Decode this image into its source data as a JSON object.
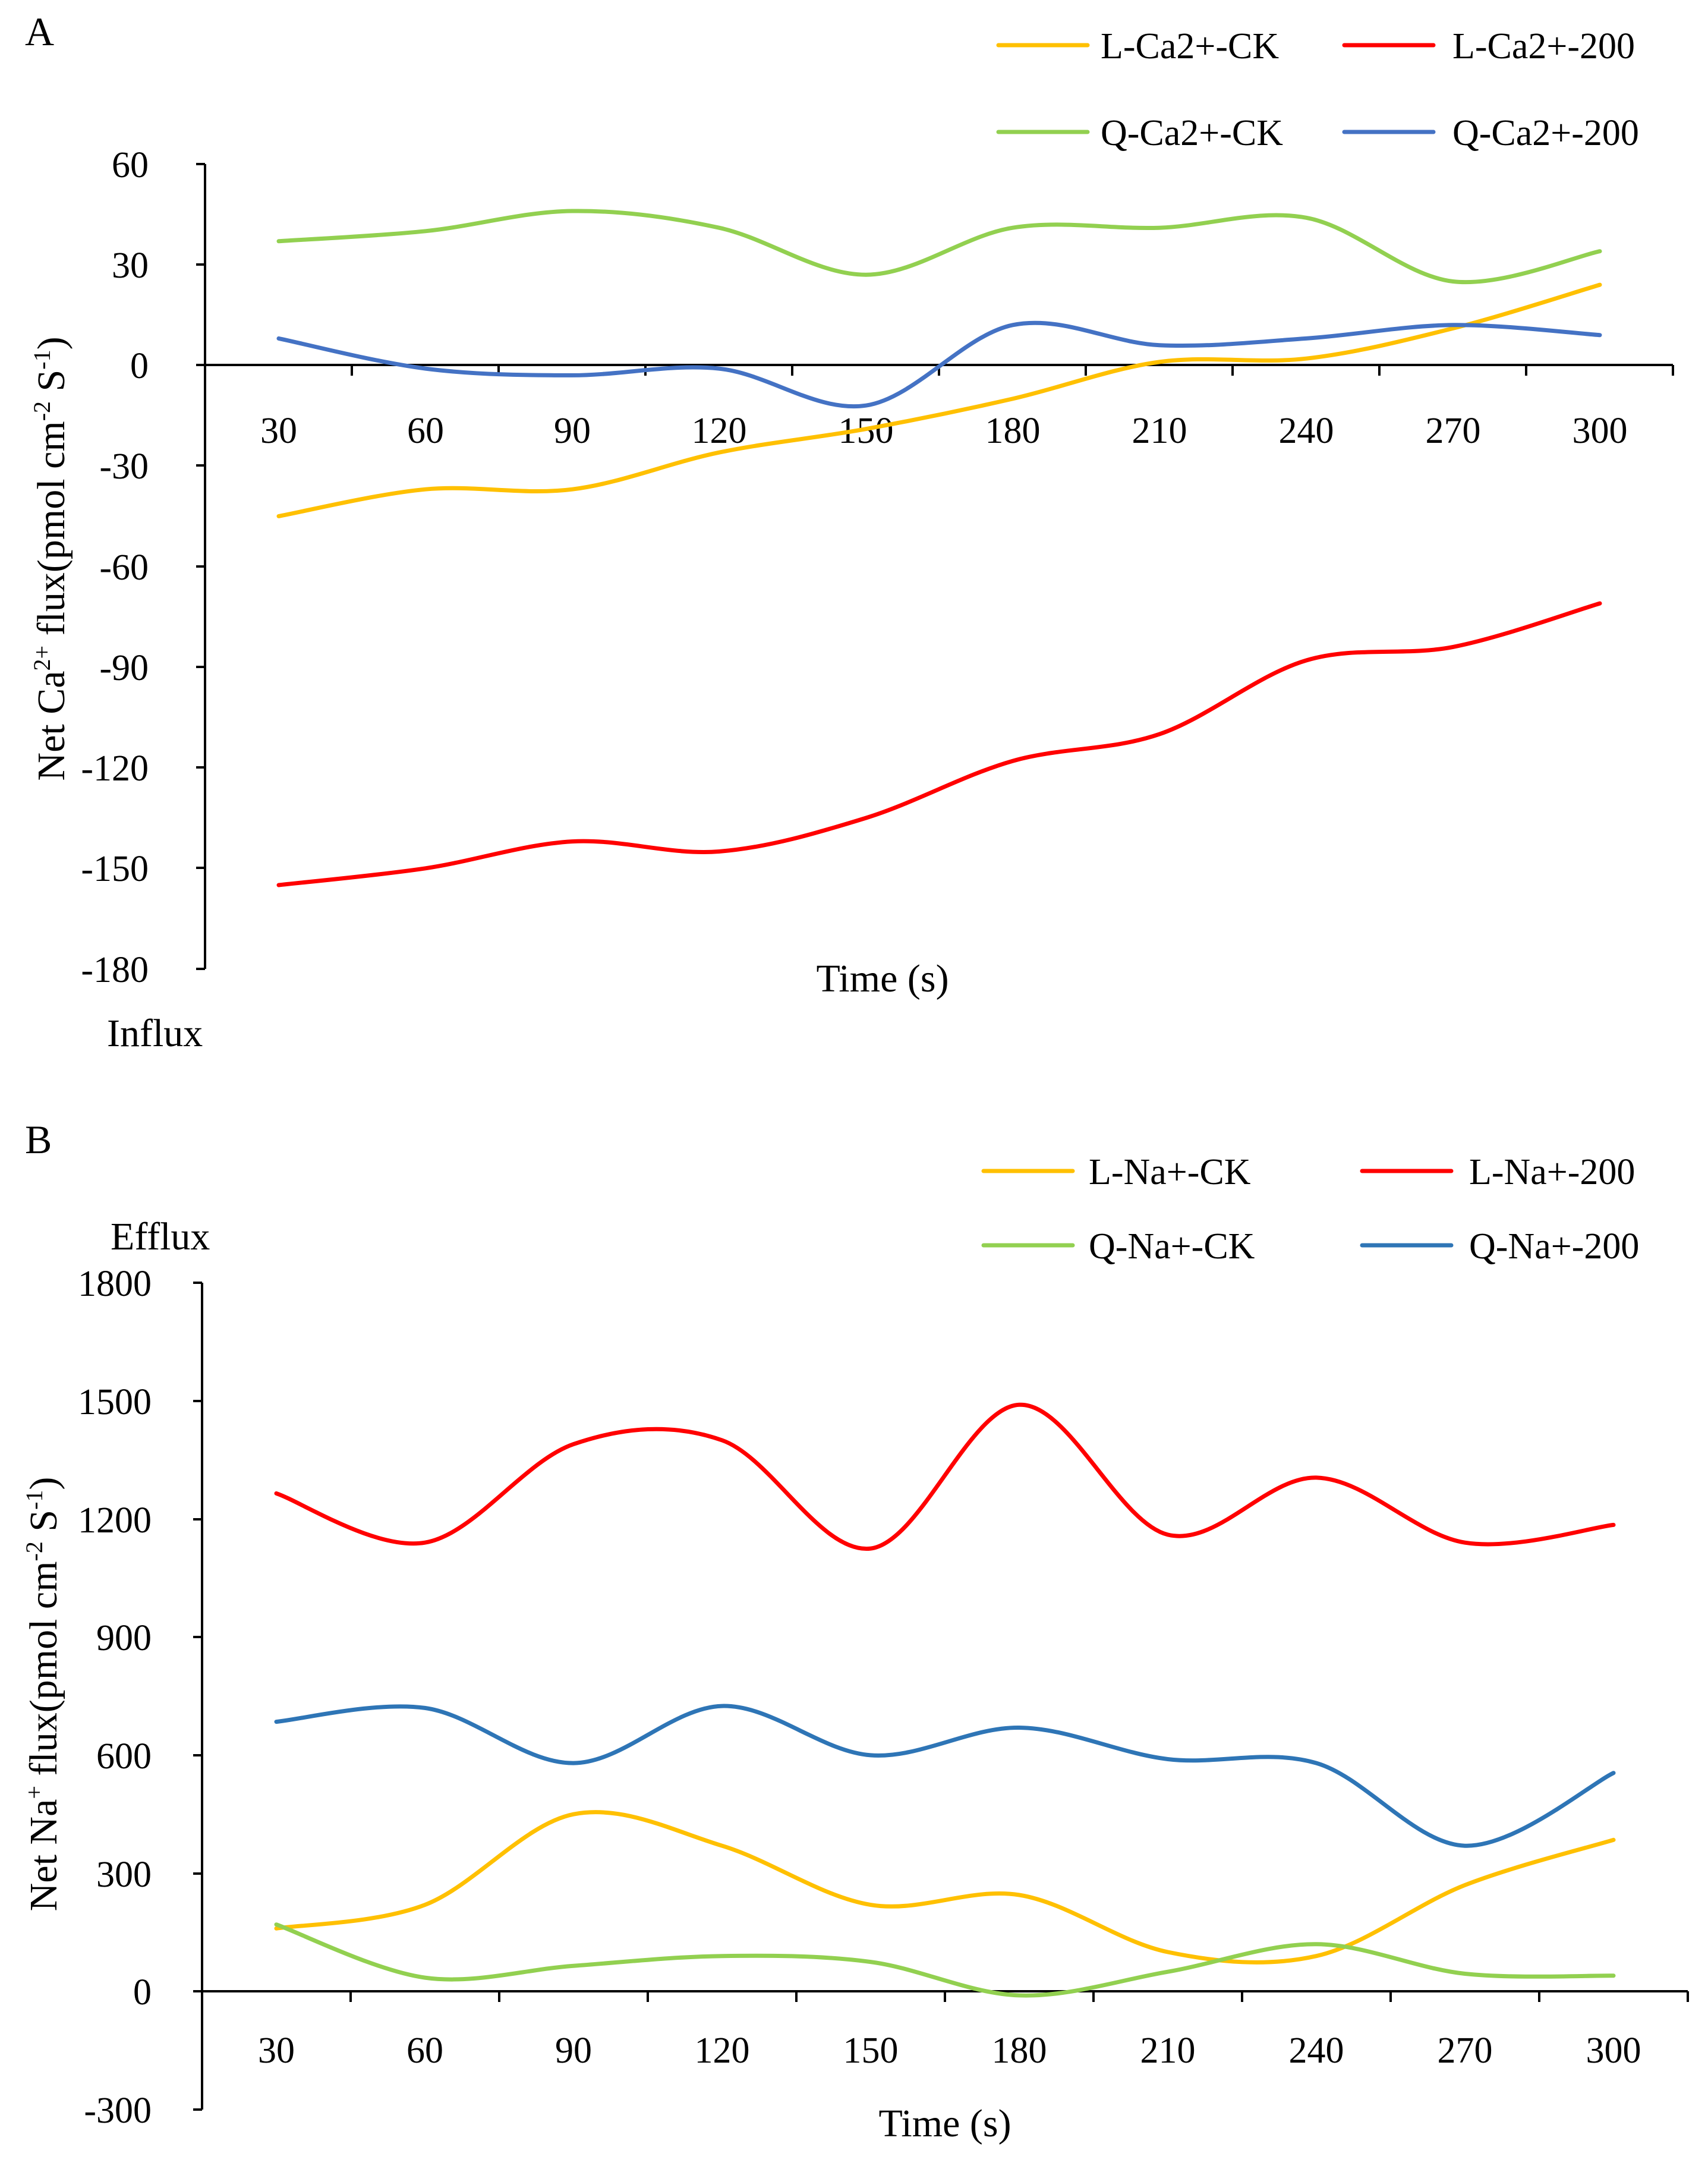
{
  "colors": {
    "yellow": "#FFC000",
    "red": "#FF0000",
    "green": "#92D050",
    "blue": "#4472C4",
    "blue_b": "#2E75B6"
  },
  "chart_data": [
    {
      "type": "line",
      "panel_label": "A",
      "title": "",
      "xlabel": "Time (s)",
      "ylabel_parts": {
        "pre": "Net Ca",
        "sup1": "2+",
        "mid": " flux(pmol cm",
        "sup2": "-2",
        "mid2": " S",
        "sup3": "-1",
        "post": ")"
      },
      "annotation": "Influx",
      "categories": [
        "30",
        "60",
        "90",
        "120",
        "150",
        "180",
        "210",
        "240",
        "270",
        "300"
      ],
      "x": [
        30,
        60,
        90,
        120,
        150,
        180,
        210,
        240,
        270,
        300
      ],
      "ylim": [
        -180,
        60
      ],
      "yticks": [
        60,
        30,
        0,
        -30,
        -60,
        -90,
        -120,
        -150,
        -180
      ],
      "ytick_labels": [
        "60",
        "30",
        "0",
        "-30",
        "-60",
        "-90",
        "-120",
        "-150",
        "-180"
      ],
      "series": [
        {
          "name": "L-Ca2+-CK",
          "color": "#FFC000",
          "values": [
            -45,
            -37,
            -37,
            -26,
            -19,
            -10,
            1,
            2,
            11,
            24
          ]
        },
        {
          "name": "L-Ca2+-200",
          "color": "#FF0000",
          "values": [
            -155,
            -150,
            -142,
            -145,
            -135,
            -118,
            -110,
            -88,
            -84,
            -71
          ]
        },
        {
          "name": "Q-Ca2+-CK",
          "color": "#92D050",
          "values": [
            37,
            40,
            46,
            41,
            27,
            41,
            41,
            44,
            25,
            34
          ]
        },
        {
          "name": "Q-Ca2+-200",
          "color": "#4472C4",
          "values": [
            8,
            -1,
            -3,
            -1,
            -12,
            12,
            6,
            8,
            12,
            9
          ]
        }
      ]
    },
    {
      "type": "line",
      "panel_label": "B",
      "title": "",
      "xlabel": "Time (s)",
      "ylabel_parts": {
        "pre": "Net Na",
        "sup1": "+",
        "mid": " flux(pmol cm",
        "sup2": "-2",
        "mid2": " S",
        "sup3": "-1",
        "post": ")"
      },
      "annotation": "Efflux",
      "categories": [
        "30",
        "60",
        "90",
        "120",
        "150",
        "180",
        "210",
        "240",
        "270",
        "300"
      ],
      "x": [
        30,
        60,
        90,
        120,
        150,
        180,
        210,
        240,
        270,
        300
      ],
      "ylim": [
        -300,
        1800
      ],
      "yticks": [
        1800,
        1500,
        1200,
        900,
        600,
        300,
        0,
        -300
      ],
      "ytick_labels": [
        "1800",
        "1500",
        "1200",
        "900",
        "600",
        "300",
        "0",
        "-300"
      ],
      "series": [
        {
          "name": "L-Na+-CK",
          "color": "#FFC000",
          "values": [
            160,
            220,
            450,
            370,
            220,
            245,
            100,
            90,
            270,
            385
          ]
        },
        {
          "name": "L-Na+-200",
          "color": "#FF0000",
          "values": [
            1265,
            1140,
            1390,
            1400,
            1125,
            1490,
            1160,
            1305,
            1140,
            1185
          ]
        },
        {
          "name": "Q-Na+-CK",
          "color": "#92D050",
          "values": [
            170,
            35,
            65,
            90,
            75,
            -10,
            50,
            120,
            45,
            40
          ]
        },
        {
          "name": "Q-Na+-200",
          "color": "#2E75B6",
          "values": [
            685,
            720,
            580,
            725,
            600,
            670,
            590,
            580,
            370,
            555
          ]
        }
      ]
    }
  ]
}
